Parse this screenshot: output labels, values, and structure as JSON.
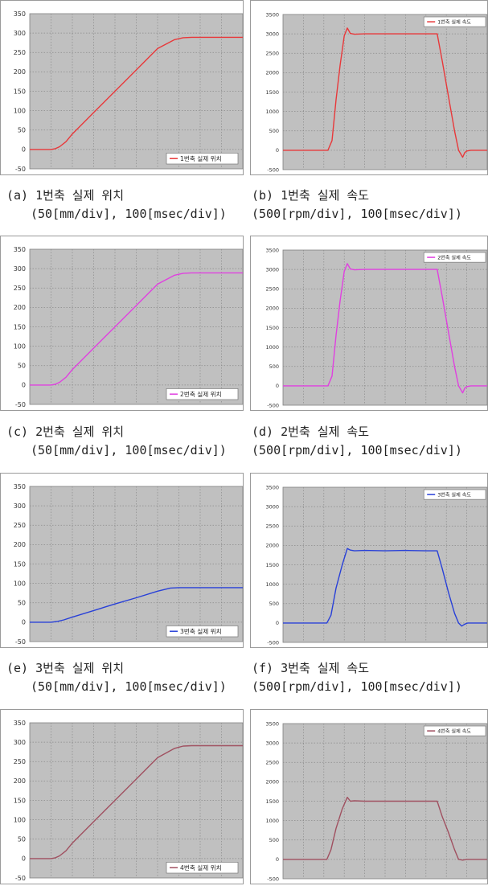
{
  "chart_data": [
    {
      "type": "line",
      "id": "a",
      "yticks": [
        "350",
        "300",
        "250",
        "200",
        "150",
        "100",
        "50",
        "0",
        "-50"
      ],
      "ylim": [
        -50,
        350
      ],
      "xlim": [
        0,
        1000
      ],
      "legend": "1번축 실제 위치",
      "legend_position": "bottom-right",
      "color": "#e8383a",
      "grid": true,
      "x": [
        0,
        100,
        120,
        140,
        170,
        200,
        300,
        400,
        500,
        600,
        680,
        720,
        760,
        1000
      ],
      "y": [
        0,
        0,
        2,
        7,
        20,
        40,
        95,
        150,
        205,
        260,
        283,
        288,
        289,
        289
      ],
      "caption_line1": "(a) 1번축 실제 위치",
      "caption_line2": "(50[mm/div], 100[msec/div])"
    },
    {
      "type": "line",
      "id": "b",
      "yticks": [
        "3500",
        "3000",
        "2500",
        "2000",
        "1500",
        "1000",
        "500",
        "0",
        "-500"
      ],
      "ylim": [
        -500,
        3500
      ],
      "xlim": [
        0,
        1000
      ],
      "legend": "1번축 실제 속도",
      "legend_position": "top-right",
      "color": "#e8383a",
      "grid": true,
      "x": [
        0,
        220,
        240,
        260,
        280,
        300,
        315,
        330,
        350,
        400,
        500,
        600,
        700,
        755,
        780,
        810,
        840,
        860,
        880,
        890,
        900,
        920,
        1000
      ],
      "y": [
        0,
        0,
        250,
        1300,
        2200,
        2950,
        3150,
        3010,
        2990,
        3000,
        3000,
        3000,
        3000,
        3000,
        2300,
        1400,
        500,
        0,
        -180,
        -60,
        -20,
        0,
        0
      ],
      "caption_line1": "(b) 1번축 실제 속도",
      "caption_line2": "(500[rpm/div], 100[msec/div])"
    },
    {
      "type": "line",
      "id": "c",
      "yticks": [
        "350",
        "300",
        "250",
        "200",
        "150",
        "100",
        "50",
        "0",
        "-50"
      ],
      "ylim": [
        -50,
        350
      ],
      "xlim": [
        0,
        1000
      ],
      "legend": "2번축 실제 위치",
      "legend_position": "bottom-right",
      "color": "#e040e0",
      "grid": true,
      "x": [
        0,
        100,
        120,
        140,
        170,
        200,
        300,
        400,
        500,
        600,
        680,
        720,
        760,
        1000
      ],
      "y": [
        0,
        0,
        2,
        7,
        20,
        40,
        95,
        150,
        205,
        260,
        283,
        288,
        289,
        289
      ],
      "caption_line1": "(c) 2번축 실제 위치",
      "caption_line2": "(50[mm/div], 100[msec/div])"
    },
    {
      "type": "line",
      "id": "d",
      "yticks": [
        "3500",
        "3000",
        "2500",
        "2000",
        "1500",
        "1000",
        "500",
        "0",
        "-500"
      ],
      "ylim": [
        -500,
        3500
      ],
      "xlim": [
        0,
        1000
      ],
      "legend": "2번축 실제 속도",
      "legend_position": "top-right",
      "color": "#e040e0",
      "grid": true,
      "x": [
        0,
        220,
        240,
        260,
        280,
        300,
        315,
        330,
        350,
        400,
        500,
        600,
        700,
        755,
        780,
        810,
        840,
        860,
        880,
        890,
        900,
        920,
        1000
      ],
      "y": [
        0,
        0,
        250,
        1300,
        2200,
        2950,
        3150,
        3010,
        2990,
        3000,
        3000,
        3000,
        3000,
        3000,
        2300,
        1400,
        500,
        0,
        -180,
        -60,
        -20,
        0,
        0
      ],
      "caption_line1": "(d) 2번축 실제 속도",
      "caption_line2": "(500[rpm/div], 100[msec/div])"
    },
    {
      "type": "line",
      "id": "e",
      "yticks": [
        "350",
        "300",
        "250",
        "200",
        "150",
        "100",
        "50",
        "0",
        "-50"
      ],
      "ylim": [
        -50,
        350
      ],
      "xlim": [
        0,
        1000
      ],
      "legend": "3번축 실제 위치",
      "legend_position": "bottom-right",
      "color": "#2840d8",
      "grid": true,
      "x": [
        0,
        100,
        130,
        160,
        200,
        300,
        400,
        500,
        600,
        660,
        700,
        740,
        1000
      ],
      "y": [
        0,
        0,
        2,
        6,
        13,
        30,
        47,
        63,
        80,
        88,
        89,
        89,
        89
      ],
      "caption_line1": "(e) 3번축 실제 위치",
      "caption_line2": "(50[mm/div], 100[msec/div])"
    },
    {
      "type": "line",
      "id": "f",
      "yticks": [
        "3500",
        "3000",
        "2500",
        "2000",
        "1500",
        "1000",
        "500",
        "0",
        "-500"
      ],
      "ylim": [
        -500,
        3500
      ],
      "xlim": [
        0,
        1000
      ],
      "legend": "3번축 실제 속도",
      "legend_position": "top-right",
      "color": "#2840d8",
      "grid": true,
      "x": [
        0,
        215,
        235,
        260,
        290,
        315,
        330,
        350,
        400,
        500,
        600,
        700,
        755,
        780,
        810,
        840,
        860,
        875,
        890,
        905,
        1000
      ],
      "y": [
        0,
        0,
        200,
        900,
        1500,
        1920,
        1880,
        1860,
        1870,
        1860,
        1870,
        1860,
        1860,
        1400,
        800,
        250,
        0,
        -80,
        -30,
        0,
        0
      ],
      "caption_line1": "(f) 3번축 실제 속도",
      "caption_line2": "(500[rpm/div], 100[msec/div])"
    },
    {
      "type": "line",
      "id": "g",
      "yticks": [
        "350",
        "300",
        "250",
        "200",
        "150",
        "100",
        "50",
        "0",
        "-50"
      ],
      "ylim": [
        -50,
        350
      ],
      "xlim": [
        0,
        1000
      ],
      "legend": "4번축 실제 위치",
      "legend_position": "bottom-right",
      "color": "#a05060",
      "grid": true,
      "x": [
        0,
        100,
        120,
        140,
        170,
        200,
        300,
        400,
        500,
        600,
        680,
        720,
        760,
        1000
      ],
      "y": [
        0,
        0,
        2,
        7,
        20,
        40,
        95,
        150,
        205,
        260,
        284,
        290,
        291,
        291
      ]
    },
    {
      "type": "line",
      "id": "h",
      "yticks": [
        "3500",
        "3000",
        "2500",
        "2000",
        "1500",
        "1000",
        "500",
        "0",
        "-500"
      ],
      "ylim": [
        -500,
        3500
      ],
      "xlim": [
        0,
        1000
      ],
      "legend": "4번축 실제 속도",
      "legend_position": "top-right",
      "color": "#a05060",
      "grid": true,
      "x": [
        0,
        215,
        235,
        260,
        290,
        315,
        330,
        350,
        400,
        500,
        600,
        700,
        755,
        780,
        810,
        840,
        860,
        880,
        900,
        1000
      ],
      "y": [
        0,
        0,
        250,
        800,
        1300,
        1600,
        1500,
        1510,
        1500,
        1500,
        1500,
        1500,
        1500,
        1100,
        700,
        250,
        0,
        -20,
        0,
        0
      ]
    }
  ],
  "colors": {
    "plot_bg": "#c0c0c0",
    "grid": "#8a8a8a",
    "frame": "#9a9a9a"
  }
}
